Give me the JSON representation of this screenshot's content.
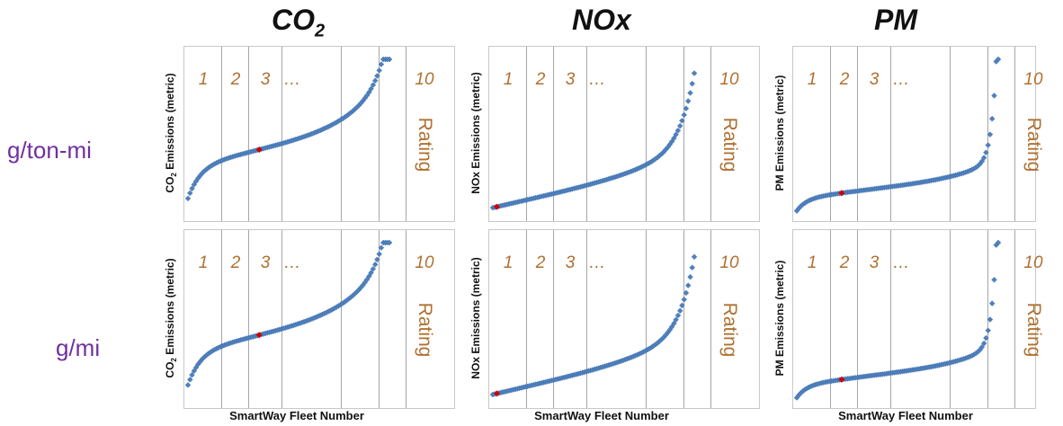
{
  "column_titles": [
    {
      "main": "CO",
      "sub": "2"
    },
    {
      "main": "NOx",
      "sub": ""
    },
    {
      "main": "PM",
      "sub": ""
    }
  ],
  "row_labels": [
    "g/ton-mi",
    "g/mi"
  ],
  "colors": {
    "point": "#4f81bd",
    "highlight": "#cc0000",
    "rating_text": "#b07030",
    "row_label": "#7030a0",
    "divider": "#a6a6a6"
  },
  "chart_data": [
    {
      "type": "scatter",
      "title": "CO2 g/ton-mi",
      "xlabel": "",
      "ylabel_main": "CO",
      "ylabel_sub": "2",
      "ylabel_rest": " Emissions (metric)",
      "curve": "co2",
      "rating_labels": [
        "1",
        "2",
        "3",
        "…",
        "10"
      ],
      "rating_text": "Rating",
      "highlight_index": 35
    },
    {
      "type": "scatter",
      "title": "NOx g/ton-mi",
      "xlabel": "",
      "ylabel_main": "NOx Emissions (metric)",
      "ylabel_sub": "",
      "ylabel_rest": "",
      "curve": "nox",
      "rating_labels": [
        "1",
        "2",
        "3",
        "…",
        "10"
      ],
      "rating_text": "Rating",
      "highlight_index": 2
    },
    {
      "type": "scatter",
      "title": "PM g/ton-mi",
      "xlabel": "",
      "ylabel_main": "PM Emissions (metric)",
      "ylabel_sub": "",
      "ylabel_rest": "",
      "curve": "pm",
      "rating_labels": [
        "1",
        "2",
        "3",
        "…",
        "10"
      ],
      "rating_text": "Rating",
      "highlight_index": 22
    },
    {
      "type": "scatter",
      "title": "CO2 g/mi",
      "xlabel": "SmartWay Fleet Number",
      "ylabel_main": "CO",
      "ylabel_sub": "2",
      "ylabel_rest": " Emissions (metric)",
      "curve": "co2",
      "rating_labels": [
        "1",
        "2",
        "3",
        "…",
        "10"
      ],
      "rating_text": "Rating",
      "highlight_index": 35
    },
    {
      "type": "scatter",
      "title": "NOx g/mi",
      "xlabel": "SmartWay Fleet Number",
      "ylabel_main": "NOx Emissions (metric)",
      "ylabel_sub": "",
      "ylabel_rest": "",
      "curve": "nox",
      "rating_labels": [
        "1",
        "2",
        "3",
        "…",
        "10"
      ],
      "rating_text": "Rating",
      "highlight_index": 2
    },
    {
      "type": "scatter",
      "title": "PM g/mi",
      "xlabel": "SmartWay Fleet Number",
      "ylabel_main": "PM Emissions (metric)",
      "ylabel_sub": "",
      "ylabel_rest": "",
      "curve": "pm",
      "rating_labels": [
        "1",
        "2",
        "3",
        "…",
        "10"
      ],
      "rating_text": "Rating",
      "highlight_index": 22
    }
  ]
}
